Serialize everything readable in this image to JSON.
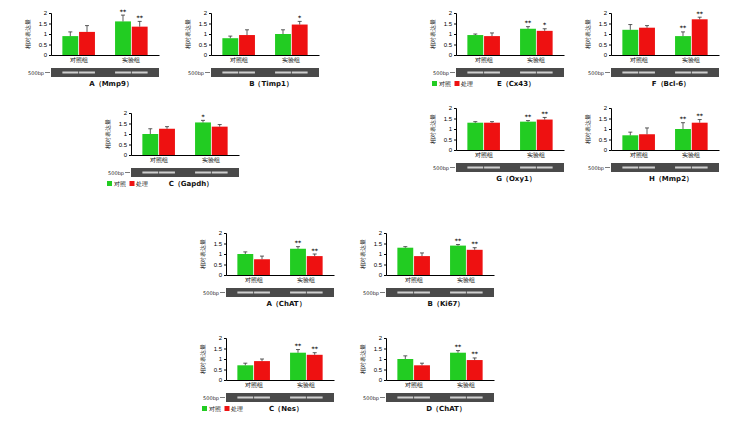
{
  "chart_data": [
    {
      "type": "bar",
      "title": "A（Mmp9）",
      "ylabel": "相对表达量",
      "annotation": "500bp",
      "categories": [
        "对照组",
        "实验组"
      ],
      "series": [
        {
          "name": "对照",
          "color": "#22cc22",
          "values": [
            0.9,
            1.6
          ],
          "errors": [
            0.2,
            0.3
          ],
          "annotations": [
            null,
            "**"
          ]
        },
        {
          "name": "处理",
          "color": "#ee1111",
          "values": [
            1.1,
            1.35
          ],
          "errors": [
            0.3,
            0.25
          ],
          "annotations": [
            null,
            "**"
          ]
        }
      ],
      "ylim": [
        0,
        2
      ],
      "yticks": [
        0,
        0.5,
        1,
        1.5,
        2
      ]
    },
    {
      "type": "bar",
      "title": "B（Timp1）",
      "ylabel": "相对表达量",
      "annotation": "500bp",
      "categories": [
        "对照组",
        "实验组"
      ],
      "series": [
        {
          "name": "对照",
          "color": "#22cc22",
          "values": [
            0.8,
            1.0
          ],
          "errors": [
            0.1,
            0.2
          ],
          "annotations": [
            null,
            null
          ]
        },
        {
          "name": "处理",
          "color": "#ee1111",
          "values": [
            0.95,
            1.45
          ],
          "errors": [
            0.25,
            0.15
          ],
          "annotations": [
            null,
            "*"
          ]
        }
      ],
      "ylim": [
        0,
        2
      ],
      "yticks": [
        0,
        0.5,
        1,
        1.5,
        2
      ]
    },
    {
      "type": "bar",
      "title": "C（Gapdh）",
      "ylabel": "相对表达量",
      "annotation": "500bp",
      "categories": [
        "对照组",
        "实验组"
      ],
      "series": [
        {
          "name": "对照",
          "color": "#22cc22",
          "values": [
            1.0,
            1.55
          ],
          "errors": [
            0.25,
            0.1
          ],
          "annotations": [
            null,
            "*"
          ]
        },
        {
          "name": "处理",
          "color": "#ee1111",
          "values": [
            1.25,
            1.35
          ],
          "errors": [
            0.1,
            0.1
          ],
          "annotations": [
            null,
            null
          ]
        }
      ],
      "ylim": [
        0,
        2
      ],
      "yticks": [
        0,
        0.5,
        1,
        1.5,
        2
      ],
      "legend": "bottom-left"
    },
    {
      "type": "bar",
      "title": "E（Cx43）",
      "ylabel": "相对表达量",
      "annotation": "500bp",
      "categories": [
        "对照组",
        "实验组"
      ],
      "series": [
        {
          "name": "对照",
          "color": "#22cc22",
          "values": [
            0.95,
            1.25
          ],
          "errors": [
            0.05,
            0.1
          ],
          "annotations": [
            null,
            "**"
          ]
        },
        {
          "name": "处理",
          "color": "#ee1111",
          "values": [
            0.9,
            1.15
          ],
          "errors": [
            0.15,
            0.1
          ],
          "annotations": [
            null,
            "*"
          ]
        }
      ],
      "ylim": [
        0,
        2
      ],
      "yticks": [
        0,
        0.5,
        1,
        1.5,
        2
      ],
      "legend": "bottom-left"
    },
    {
      "type": "bar",
      "title": "F（Bcl-6）",
      "ylabel": "相对表达量",
      "annotation": "500bp",
      "categories": [
        "对照组",
        "实验组"
      ],
      "series": [
        {
          "name": "对照",
          "color": "#22cc22",
          "values": [
            1.2,
            0.9
          ],
          "errors": [
            0.25,
            0.2
          ],
          "annotations": [
            null,
            "**"
          ]
        },
        {
          "name": "处理",
          "color": "#ee1111",
          "values": [
            1.3,
            1.7
          ],
          "errors": [
            0.1,
            0.1
          ],
          "annotations": [
            null,
            "**"
          ]
        }
      ],
      "ylim": [
        0,
        2
      ],
      "yticks": [
        0,
        0.5,
        1,
        1.5,
        2
      ]
    },
    {
      "type": "bar",
      "title": "G（Oxy1）",
      "ylabel": "相对表达量",
      "annotation": "500bp",
      "categories": [
        "对照组",
        "实验组"
      ],
      "series": [
        {
          "name": "对照",
          "color": "#22cc22",
          "values": [
            1.3,
            1.35
          ],
          "errors": [
            0.05,
            0.05
          ],
          "annotations": [
            null,
            "**"
          ]
        },
        {
          "name": "处理",
          "color": "#ee1111",
          "values": [
            1.3,
            1.45
          ],
          "errors": [
            0.05,
            0.1
          ],
          "annotations": [
            null,
            "**"
          ]
        }
      ],
      "ylim": [
        0,
        2
      ],
      "yticks": [
        0,
        0.5,
        1,
        1.5,
        2
      ]
    },
    {
      "type": "bar",
      "title": "H（Mmp2）",
      "ylabel": "相对表达量",
      "annotation": "500bp",
      "categories": [
        "对照组",
        "实验组"
      ],
      "series": [
        {
          "name": "对照",
          "color": "#22cc22",
          "values": [
            0.7,
            1.0
          ],
          "errors": [
            0.15,
            0.3
          ],
          "annotations": [
            null,
            "**"
          ]
        },
        {
          "name": "处理",
          "color": "#ee1111",
          "values": [
            0.75,
            1.3
          ],
          "errors": [
            0.3,
            0.15
          ],
          "annotations": [
            null,
            "**"
          ]
        }
      ],
      "ylim": [
        0,
        2
      ],
      "yticks": [
        0,
        0.5,
        1,
        1.5,
        2
      ]
    },
    {
      "type": "bar",
      "title": "A（ChAT）",
      "ylabel": "相对表达量",
      "annotation": "500bp",
      "categories": [
        "对照组",
        "实验组"
      ],
      "series": [
        {
          "name": "对照",
          "color": "#22cc22",
          "values": [
            1.0,
            1.25
          ],
          "errors": [
            0.1,
            0.1
          ],
          "annotations": [
            null,
            "**"
          ]
        },
        {
          "name": "处理",
          "color": "#ee1111",
          "values": [
            0.75,
            0.9
          ],
          "errors": [
            0.15,
            0.1
          ],
          "annotations": [
            null,
            "**"
          ]
        }
      ],
      "ylim": [
        0,
        2
      ],
      "yticks": [
        0,
        0.5,
        1,
        1.5,
        2
      ]
    },
    {
      "type": "bar",
      "title": "B（Ki67）",
      "ylabel": "相对表达量",
      "annotation": "500bp",
      "categories": [
        "对照组",
        "实验组"
      ],
      "series": [
        {
          "name": "对照",
          "color": "#22cc22",
          "values": [
            1.3,
            1.4
          ],
          "errors": [
            0.05,
            0.05
          ],
          "annotations": [
            null,
            "**"
          ]
        },
        {
          "name": "处理",
          "color": "#ee1111",
          "values": [
            0.9,
            1.2
          ],
          "errors": [
            0.15,
            0.1
          ],
          "annotations": [
            null,
            "**"
          ]
        }
      ],
      "ylim": [
        0,
        2
      ],
      "yticks": [
        0,
        0.5,
        1,
        1.5,
        2
      ]
    },
    {
      "type": "bar",
      "title": "C（Nes）",
      "ylabel": "相对表达量",
      "annotation": "500bp",
      "categories": [
        "对照组",
        "实验组"
      ],
      "series": [
        {
          "name": "对照",
          "color": "#22cc22",
          "values": [
            0.7,
            1.3
          ],
          "errors": [
            0.1,
            0.15
          ],
          "annotations": [
            null,
            "**"
          ]
        },
        {
          "name": "处理",
          "color": "#ee1111",
          "values": [
            0.9,
            1.2
          ],
          "errors": [
            0.1,
            0.1
          ],
          "annotations": [
            null,
            "**"
          ]
        }
      ],
      "ylim": [
        0,
        2
      ],
      "yticks": [
        0,
        0.5,
        1,
        1.5,
        2
      ],
      "legend": "bottom-left"
    },
    {
      "type": "bar",
      "title": "D（ChAT）",
      "ylabel": "相对表达量",
      "annotation": "500bp",
      "categories": [
        "对照组",
        "实验组"
      ],
      "series": [
        {
          "name": "对照",
          "color": "#22cc22",
          "values": [
            1.0,
            1.3
          ],
          "errors": [
            0.15,
            0.1
          ],
          "annotations": [
            null,
            "**"
          ]
        },
        {
          "name": "处理",
          "color": "#ee1111",
          "values": [
            0.7,
            0.95
          ],
          "errors": [
            0.1,
            0.1
          ],
          "annotations": [
            null,
            "**"
          ]
        }
      ],
      "ylim": [
        0,
        2
      ],
      "yticks": [
        0,
        0.5,
        1,
        1.5,
        2
      ]
    }
  ]
}
